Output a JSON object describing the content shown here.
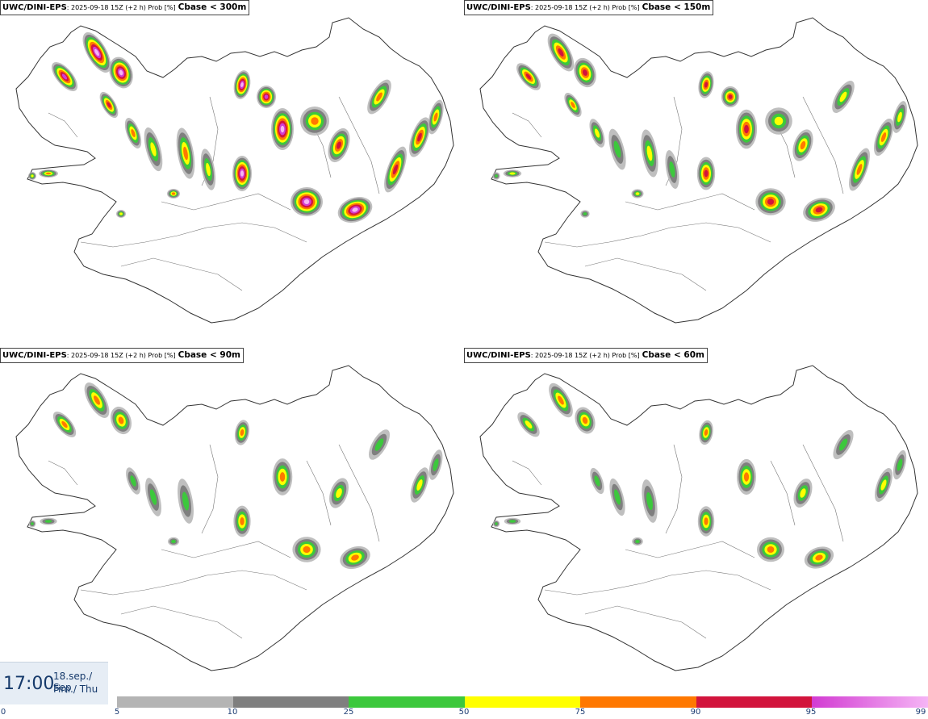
{
  "panels": [
    {
      "product": "UWC/DINI-EPS",
      "meta": ": 2025-09-18 15Z (+2 h) Prob [%]",
      "threshold": "Cbase < 300m",
      "coverage": "high"
    },
    {
      "product": "UWC/DINI-EPS",
      "meta": ": 2025-09-18 15Z (+2 h) Prob [%]",
      "threshold": "Cbase < 150m",
      "coverage": "medium"
    },
    {
      "product": "UWC/DINI-EPS",
      "meta": ": 2025-09-18 15Z (+2 h) Prob [%]",
      "threshold": "Cbase < 90m",
      "coverage": "low"
    },
    {
      "product": "UWC/DINI-EPS",
      "meta": ": 2025-09-18 15Z (+2 h) Prob [%]",
      "threshold": "Cbase < 60m",
      "coverage": "lowest"
    }
  ],
  "time": {
    "clock": "17:00",
    "date_line1": "18.sep./ Sep",
    "date_line2": "Fim./ Thu"
  },
  "colorbar": {
    "ticks": [
      "0",
      "5",
      "10",
      "25",
      "50",
      "75",
      "90",
      "95",
      "99"
    ],
    "segments": [
      {
        "from": "5",
        "to": "10",
        "color": "#b4b4b4"
      },
      {
        "from": "10",
        "to": "25",
        "color": "#7f7f7f"
      },
      {
        "from": "25",
        "to": "50",
        "color": "#3cc83c"
      },
      {
        "from": "50",
        "to": "75",
        "color": "#ffff00"
      },
      {
        "from": "75",
        "to": "90",
        "color": "#ff7800"
      },
      {
        "from": "90",
        "to": "95",
        "color": "#d2143c"
      },
      {
        "from": "95",
        "to": "99",
        "color": "#d23cd2",
        "color_end": "#f5b4f5"
      }
    ]
  }
}
